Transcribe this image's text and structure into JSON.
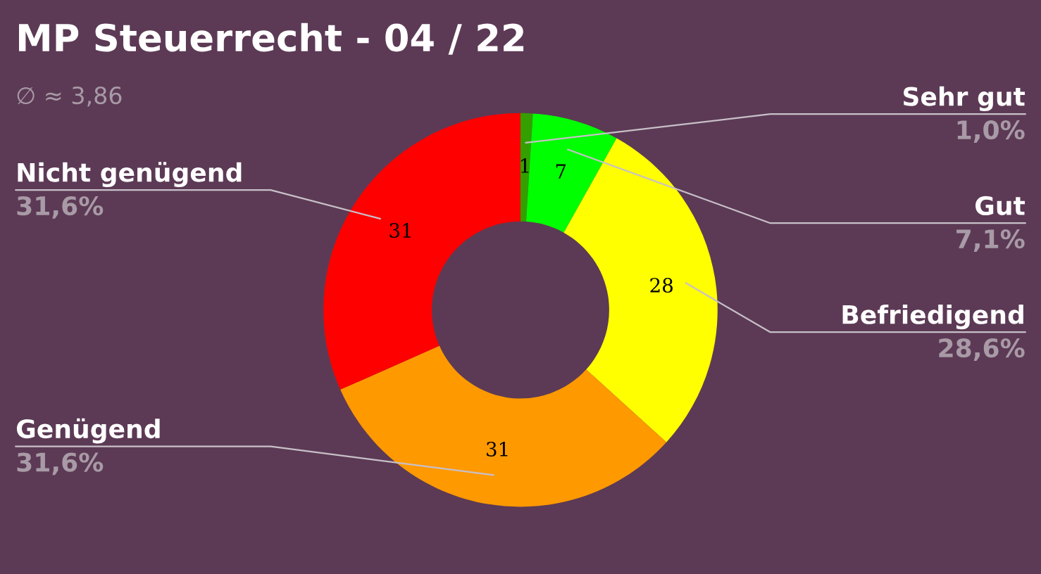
{
  "chart_data": {
    "type": "donut",
    "title": "MP Steuerrecht - 04 / 22",
    "subtitle": "∅ ≈ 3,86",
    "categories": [
      "Sehr gut",
      "Gut",
      "Befriedigend",
      "Genügend",
      "Nicht genügend"
    ],
    "values": [
      1.0,
      7.1,
      28.6,
      31.6,
      31.6
    ],
    "colors": [
      "#33a000",
      "#00ff00",
      "#ffff00",
      "#ff9900",
      "#ff0000"
    ],
    "value_labels": [
      "1,0%",
      "7,1%",
      "28,6%",
      "31,6%",
      "31,6%"
    ],
    "annotations": [
      {
        "text": "1",
        "x": "Sehr gut"
      },
      {
        "text": "7",
        "x": "Gut"
      },
      {
        "text": "28",
        "x": "Befriedigend"
      },
      {
        "text": "31",
        "x": "Genügend"
      },
      {
        "text": "31",
        "x": "Nicht genügend"
      }
    ],
    "legend": false
  }
}
